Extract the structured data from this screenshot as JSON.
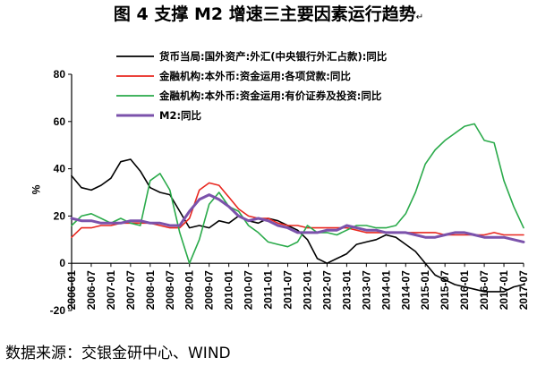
{
  "chart_data": {
    "type": "line",
    "title": "图 4  支撑 M2 增速三主要因素运行趋势",
    "title_mark": "↵",
    "ylabel": "%",
    "xlabel": "",
    "ylim": [
      -20,
      80
    ],
    "yticks": [
      -20,
      0,
      20,
      40,
      60,
      80
    ],
    "grid": false,
    "legend_position": "top-left",
    "x_tick_labels": [
      "2006-01",
      "2006-07",
      "2007-01",
      "2007-07",
      "2008-01",
      "2008-07",
      "2009-01",
      "2009-07",
      "2010-01",
      "2010-07",
      "2011-01",
      "2011-07",
      "2012-01",
      "2012-07",
      "2013-01",
      "2013-07",
      "2014-01",
      "2014-07",
      "2015-01",
      "2015-07",
      "2016-01",
      "2016-07",
      "2017-01",
      "2017-07"
    ],
    "x": [
      "2006-01",
      "2006-04",
      "2006-07",
      "2006-10",
      "2007-01",
      "2007-04",
      "2007-07",
      "2007-10",
      "2008-01",
      "2008-04",
      "2008-07",
      "2008-10",
      "2009-01",
      "2009-04",
      "2009-07",
      "2009-10",
      "2010-01",
      "2010-04",
      "2010-07",
      "2010-10",
      "2011-01",
      "2011-04",
      "2011-07",
      "2011-10",
      "2012-01",
      "2012-04",
      "2012-07",
      "2012-10",
      "2013-01",
      "2013-04",
      "2013-07",
      "2013-10",
      "2014-01",
      "2014-04",
      "2014-07",
      "2014-10",
      "2015-01",
      "2015-04",
      "2015-07",
      "2015-10",
      "2016-01",
      "2016-04",
      "2016-07",
      "2016-10",
      "2017-01",
      "2017-04",
      "2017-07"
    ],
    "series": [
      {
        "name": "货币当局:国外资产:外汇(中央银行外汇占款):同比",
        "color": "#000000",
        "values": [
          37,
          32,
          31,
          33,
          36,
          43,
          44,
          39,
          32,
          30,
          29,
          22,
          15,
          16,
          15,
          18,
          17,
          20,
          18,
          17,
          19,
          18,
          16,
          14,
          10,
          2,
          0,
          2,
          4,
          8,
          9,
          10,
          12,
          11,
          8,
          5,
          0,
          -5,
          -7,
          -9,
          -10,
          -11,
          -12,
          -12,
          -12,
          -10,
          -9
        ]
      },
      {
        "name": "金融机构:本外币:资金运用:各项贷款:同比",
        "color": "#e8271f",
        "values": [
          11,
          15,
          15,
          16,
          16,
          17,
          17,
          17,
          17,
          16,
          15,
          15,
          19,
          31,
          34,
          33,
          28,
          23,
          20,
          19,
          19,
          17,
          16,
          16,
          15,
          15,
          15,
          15,
          15,
          14,
          13,
          13,
          13,
          13,
          13,
          13,
          13,
          13,
          12,
          12,
          12,
          12,
          12,
          13,
          12,
          12,
          12
        ]
      },
      {
        "name": "金融机构:本外币:资金运用:有价证券及投资:同比",
        "color": "#2aaa4a",
        "values": [
          16,
          20,
          21,
          19,
          17,
          19,
          17,
          16,
          35,
          38,
          31,
          13,
          0,
          10,
          25,
          30,
          24,
          22,
          16,
          13,
          9,
          8,
          7,
          9,
          16,
          13,
          13,
          12,
          14,
          16,
          16,
          15,
          15,
          16,
          21,
          30,
          42,
          48,
          52,
          55,
          58,
          59,
          52,
          51,
          35,
          24,
          15
        ]
      },
      {
        "name": "M2:同比",
        "color": "#7b52ab",
        "values": [
          19,
          18,
          18,
          17,
          17,
          17,
          18,
          18,
          17,
          17,
          16,
          16,
          22,
          27,
          29,
          27,
          24,
          20,
          18,
          19,
          18,
          16,
          15,
          13,
          13,
          13,
          14,
          14,
          16,
          15,
          14,
          14,
          13,
          13,
          13,
          12,
          11,
          11,
          12,
          13,
          13,
          12,
          11,
          11,
          11,
          10,
          9
        ]
      }
    ]
  },
  "source_text": "数据来源：交银金研中心、WIND"
}
